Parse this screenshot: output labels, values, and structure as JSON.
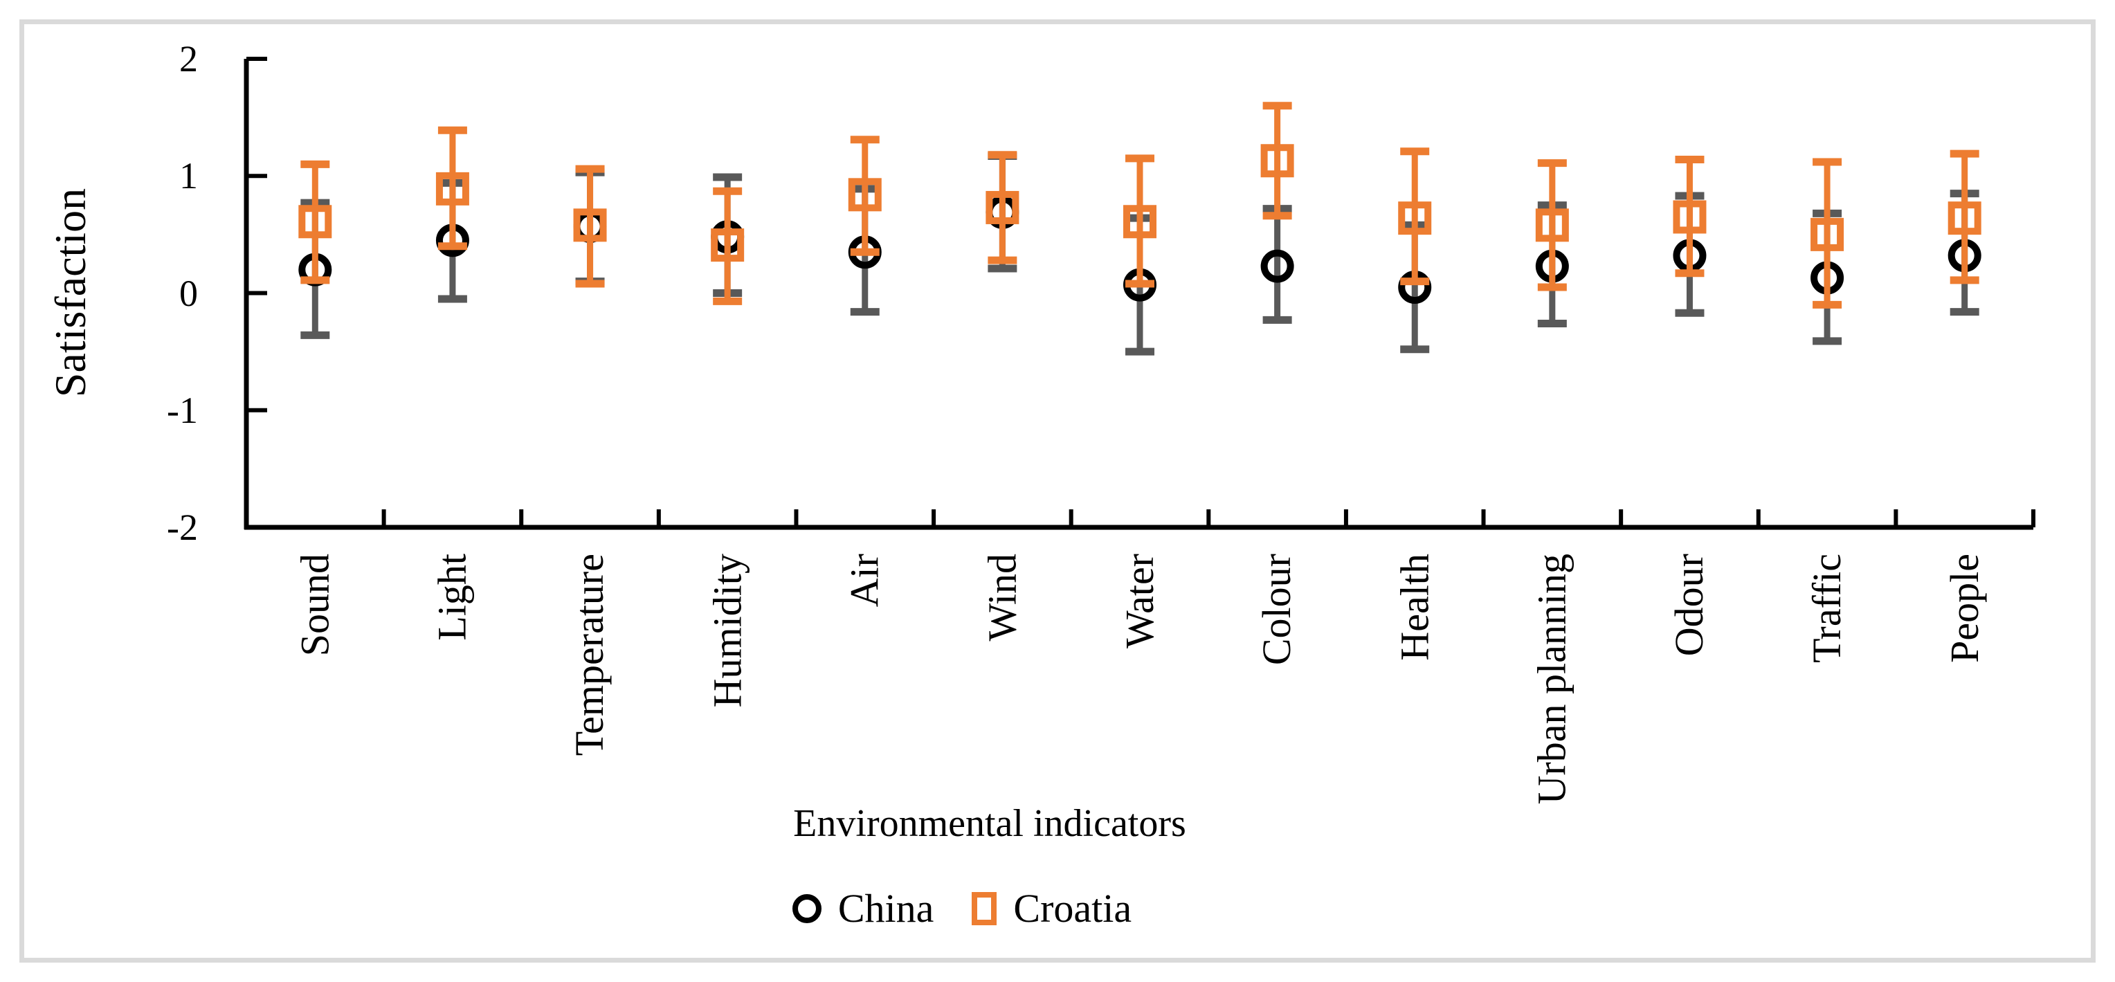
{
  "figure": {
    "background": "#FFFFFF",
    "border_color": "#DADADA",
    "axis_color": "#000000",
    "text_color": "#000000"
  },
  "chart_data": {
    "type": "scatter",
    "title": "",
    "xlabel": "Environmental indicators",
    "ylabel": "Satisfaction",
    "ylim": [
      -2,
      2
    ],
    "yticks": [
      "2",
      "1",
      "0",
      "-1",
      "-2"
    ],
    "ytick_values": [
      2,
      1,
      0,
      -1,
      -2
    ],
    "grid": false,
    "legend_position": "bottom",
    "categories": [
      "Sound",
      "Light",
      "Temperature",
      "Humidity",
      "Air",
      "Wind",
      "Water",
      "Colour",
      "Health",
      "Urban planning",
      "Odour",
      "Traffic",
      "People"
    ],
    "series": [
      {
        "name": "China",
        "marker": "circle",
        "marker_color": "#000000",
        "errorbar_color": "#595959",
        "values": [
          0.2,
          0.45,
          0.57,
          0.48,
          0.35,
          0.69,
          0.07,
          0.23,
          0.05,
          0.23,
          0.32,
          0.13,
          0.32
        ],
        "whisker_low": [
          -0.36,
          -0.05,
          0.1,
          0.0,
          -0.16,
          0.21,
          -0.5,
          -0.23,
          -0.48,
          -0.26,
          -0.17,
          -0.41,
          -0.16
        ],
        "whisker_high": [
          0.77,
          0.94,
          1.03,
          0.99,
          0.89,
          1.17,
          0.64,
          0.72,
          0.58,
          0.75,
          0.83,
          0.68,
          0.85
        ]
      },
      {
        "name": "Croatia",
        "marker": "square",
        "marker_color": "#ED7D31",
        "errorbar_color": "#ED7D31",
        "values": [
          0.61,
          0.89,
          0.58,
          0.41,
          0.84,
          0.73,
          0.61,
          1.13,
          0.64,
          0.58,
          0.65,
          0.5,
          0.64
        ],
        "whisker_low": [
          0.11,
          0.4,
          0.08,
          -0.07,
          0.35,
          0.28,
          0.08,
          0.66,
          0.1,
          0.05,
          0.17,
          -0.1,
          0.11
        ],
        "whisker_high": [
          1.1,
          1.39,
          1.06,
          0.87,
          1.31,
          1.18,
          1.15,
          1.6,
          1.21,
          1.11,
          1.14,
          1.12,
          1.19
        ]
      }
    ]
  }
}
